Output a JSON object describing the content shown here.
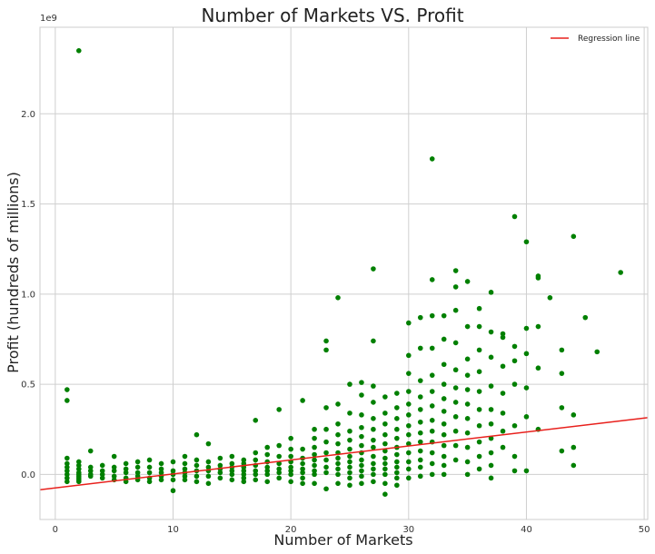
{
  "chart_data": {
    "type": "scatter",
    "title": "Number of Markets VS. Profit",
    "xlabel": "Number of Markets",
    "ylabel": "Profit (hundreds of millions)",
    "y_offset_label": "1e9",
    "xlim": [
      -1.3,
      50.3
    ],
    "ylim": [
      -0.25,
      2.48
    ],
    "x_ticks": [
      0,
      10,
      20,
      30,
      40,
      50
    ],
    "x_tick_labels": [
      "0",
      "10",
      "20",
      "30",
      "40",
      "50"
    ],
    "y_ticks": [
      0.0,
      0.5,
      1.0,
      1.5,
      2.0
    ],
    "y_tick_labels": [
      "0.0",
      "0.5",
      "1.0",
      "1.5",
      "2.0"
    ],
    "grid": true,
    "legend_position": "top-right",
    "colors": {
      "points": "#008000",
      "regression": "#e8201c",
      "grid": "#cfcfcf",
      "background": "#ffffff"
    },
    "series": [
      {
        "kind": "points",
        "x": [
          1,
          1,
          1,
          1,
          1,
          1,
          1,
          1,
          1,
          2,
          2,
          2,
          2,
          2,
          2,
          2,
          2,
          2,
          2,
          3,
          3,
          3,
          3,
          3,
          4,
          4,
          4,
          4,
          5,
          5,
          5,
          5,
          5,
          6,
          6,
          6,
          6,
          6,
          7,
          7,
          7,
          7,
          7,
          8,
          8,
          8,
          8,
          8,
          9,
          9,
          9,
          9,
          9,
          10,
          10,
          10,
          10,
          10,
          11,
          11,
          11,
          11,
          11,
          11,
          12,
          12,
          12,
          12,
          12,
          12,
          13,
          13,
          13,
          13,
          13,
          13,
          14,
          14,
          14,
          14,
          14,
          15,
          15,
          15,
          15,
          15,
          15,
          16,
          16,
          16,
          16,
          16,
          16,
          16,
          17,
          17,
          17,
          17,
          17,
          17,
          17,
          18,
          18,
          18,
          18,
          18,
          18,
          18,
          19,
          19,
          19,
          19,
          19,
          19,
          19,
          20,
          20,
          20,
          20,
          20,
          20,
          20,
          20,
          21,
          21,
          21,
          21,
          21,
          21,
          21,
          21,
          22,
          22,
          22,
          22,
          22,
          22,
          22,
          22,
          22,
          23,
          23,
          23,
          23,
          23,
          23,
          23,
          23,
          23,
          23,
          24,
          24,
          24,
          24,
          24,
          24,
          24,
          24,
          24,
          24,
          24,
          25,
          25,
          25,
          25,
          25,
          25,
          25,
          25,
          25,
          25,
          25,
          26,
          26,
          26,
          26,
          26,
          26,
          26,
          26,
          26,
          26,
          26,
          26,
          27,
          27,
          27,
          27,
          27,
          27,
          27,
          27,
          27,
          27,
          27,
          27,
          27,
          28,
          28,
          28,
          28,
          28,
          28,
          28,
          28,
          28,
          28,
          28,
          28,
          29,
          29,
          29,
          29,
          29,
          29,
          29,
          29,
          29,
          29,
          29,
          29,
          30,
          30,
          30,
          30,
          30,
          30,
          30,
          30,
          30,
          30,
          30,
          30,
          30,
          31,
          31,
          31,
          31,
          31,
          31,
          31,
          31,
          31,
          31,
          31,
          31,
          32,
          32,
          32,
          32,
          32,
          32,
          32,
          32,
          32,
          32,
          32,
          32,
          32,
          33,
          33,
          33,
          33,
          33,
          33,
          33,
          33,
          33,
          33,
          33,
          33,
          34,
          34,
          34,
          34,
          34,
          34,
          34,
          34,
          34,
          34,
          34,
          35,
          35,
          35,
          35,
          35,
          35,
          35,
          35,
          35,
          35,
          35,
          36,
          36,
          36,
          36,
          36,
          36,
          36,
          36,
          36,
          36,
          37,
          37,
          37,
          37,
          37,
          37,
          37,
          37,
          37,
          37,
          38,
          38,
          38,
          38,
          38,
          38,
          38,
          39,
          39,
          39,
          39,
          39,
          39,
          39,
          40,
          40,
          40,
          40,
          40,
          40,
          41,
          41,
          41,
          41,
          41,
          42,
          43,
          43,
          43,
          43,
          44,
          44,
          44,
          44,
          45,
          46,
          48
        ],
        "y": [
          0.47,
          0.41,
          0.09,
          0.06,
          0.04,
          0.02,
          0.0,
          -0.02,
          -0.04,
          2.35,
          0.07,
          0.05,
          0.03,
          0.01,
          0.0,
          -0.01,
          -0.02,
          -0.03,
          -0.04,
          0.13,
          0.04,
          0.02,
          0.0,
          -0.01,
          0.05,
          0.02,
          0.0,
          -0.02,
          0.1,
          0.04,
          0.02,
          -0.01,
          -0.03,
          0.06,
          0.03,
          0.01,
          -0.02,
          -0.04,
          0.07,
          0.04,
          0.01,
          -0.01,
          -0.03,
          0.08,
          0.04,
          0.01,
          -0.02,
          -0.04,
          0.06,
          0.03,
          0.01,
          -0.01,
          -0.03,
          0.07,
          0.02,
          0.0,
          -0.03,
          -0.09,
          0.1,
          0.06,
          0.03,
          0.01,
          -0.01,
          -0.03,
          0.22,
          0.08,
          0.05,
          0.02,
          -0.01,
          -0.04,
          0.17,
          0.07,
          0.04,
          0.02,
          -0.01,
          -0.05,
          0.09,
          0.05,
          0.03,
          0.01,
          -0.02,
          0.1,
          0.06,
          0.04,
          0.02,
          0.0,
          -0.03,
          0.08,
          0.06,
          0.04,
          0.02,
          0.0,
          -0.02,
          -0.04,
          0.3,
          0.12,
          0.08,
          0.05,
          0.02,
          0.0,
          -0.03,
          0.15,
          0.11,
          0.07,
          0.04,
          0.02,
          0.0,
          -0.04,
          0.36,
          0.16,
          0.1,
          0.06,
          0.03,
          0.01,
          -0.02,
          0.2,
          0.14,
          0.1,
          0.07,
          0.04,
          0.02,
          0.0,
          -0.04,
          0.41,
          0.14,
          0.09,
          0.06,
          0.03,
          0.01,
          -0.02,
          -0.05,
          0.25,
          0.2,
          0.15,
          0.11,
          0.08,
          0.05,
          0.02,
          0.0,
          -0.05,
          0.74,
          0.69,
          0.37,
          0.25,
          0.18,
          0.12,
          0.08,
          0.04,
          0.01,
          -0.08,
          0.98,
          0.39,
          0.28,
          0.22,
          0.17,
          0.12,
          0.09,
          0.06,
          0.03,
          0.0,
          -0.05,
          0.5,
          0.34,
          0.24,
          0.19,
          0.14,
          0.1,
          0.07,
          0.04,
          0.01,
          -0.02,
          -0.06,
          0.51,
          0.44,
          0.33,
          0.26,
          0.21,
          0.16,
          0.12,
          0.08,
          0.05,
          0.02,
          -0.01,
          -0.05,
          1.14,
          0.74,
          0.49,
          0.4,
          0.31,
          0.25,
          0.19,
          0.15,
          0.1,
          0.06,
          0.03,
          0.0,
          -0.04,
          0.43,
          0.34,
          0.28,
          0.22,
          0.17,
          0.13,
          0.09,
          0.06,
          0.03,
          0.0,
          -0.05,
          -0.11,
          0.45,
          0.37,
          0.31,
          0.25,
          0.2,
          0.15,
          0.11,
          0.07,
          0.04,
          0.01,
          -0.02,
          -0.06,
          0.84,
          0.66,
          0.56,
          0.46,
          0.39,
          0.33,
          0.27,
          0.22,
          0.17,
          0.12,
          0.07,
          0.03,
          -0.02,
          0.87,
          0.7,
          0.52,
          0.43,
          0.36,
          0.29,
          0.23,
          0.18,
          0.13,
          0.08,
          0.04,
          -0.01,
          1.75,
          1.08,
          0.88,
          0.7,
          0.55,
          0.46,
          0.38,
          0.3,
          0.24,
          0.18,
          0.12,
          0.06,
          0.0,
          0.88,
          0.75,
          0.61,
          0.5,
          0.42,
          0.35,
          0.28,
          0.22,
          0.16,
          0.1,
          0.05,
          0.0,
          1.13,
          1.04,
          0.91,
          0.73,
          0.58,
          0.48,
          0.4,
          0.32,
          0.24,
          0.16,
          0.08,
          1.07,
          0.82,
          0.64,
          0.55,
          0.47,
          0.39,
          0.31,
          0.23,
          0.15,
          0.07,
          0.0,
          0.92,
          0.82,
          0.69,
          0.57,
          0.46,
          0.36,
          0.27,
          0.18,
          0.1,
          0.03,
          1.01,
          0.79,
          0.65,
          0.49,
          0.36,
          0.28,
          0.2,
          0.12,
          0.05,
          -0.02,
          0.78,
          0.76,
          0.6,
          0.45,
          0.34,
          0.24,
          0.15,
          1.43,
          0.71,
          0.63,
          0.5,
          0.27,
          0.1,
          0.02,
          1.29,
          0.81,
          0.67,
          0.48,
          0.32,
          0.02,
          1.1,
          1.09,
          0.82,
          0.59,
          0.25,
          0.98,
          0.69,
          0.56,
          0.37,
          0.13,
          1.32,
          0.33,
          0.15,
          0.05,
          0.87,
          0.68,
          1.12
        ]
      },
      {
        "kind": "line",
        "name": "Regression line",
        "x": [
          -1.3,
          50.3
        ],
        "y": [
          -0.085,
          0.315
        ]
      }
    ]
  }
}
